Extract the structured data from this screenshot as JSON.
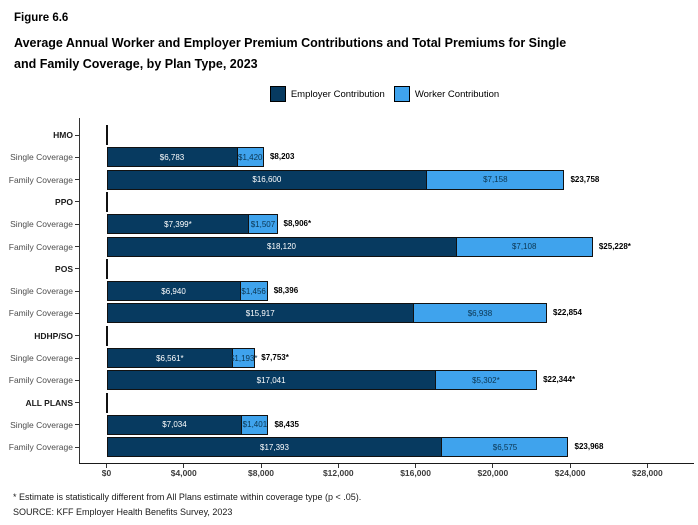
{
  "figure_label": "Figure 6.6",
  "title_lines": [
    "Average Annual Worker and Employer Premium Contributions and Total Premiums for Single",
    "and Family Coverage, by Plan Type, 2023"
  ],
  "legend": {
    "items": [
      {
        "name": "employer",
        "label": "Employer Contribution",
        "color": "#073A60"
      },
      {
        "name": "worker",
        "label": "Worker Contribution",
        "color": "#3FA3ED"
      }
    ]
  },
  "chart_data": {
    "type": "bar",
    "orientation": "horizontal",
    "stacked": true,
    "title": "Average Annual Worker and Employer Premium Contributions and Total Premiums for Single and Family Coverage, by Plan Type, 2023",
    "xlabel": "",
    "ylabel": "",
    "xlim": [
      0,
      28000
    ],
    "grid": false,
    "legend_position": "top-center",
    "series_names": [
      "Employer Contribution",
      "Worker Contribution"
    ],
    "x_ticks": [
      {
        "value": 0,
        "label": "$0"
      },
      {
        "value": 4000,
        "label": "$4,000"
      },
      {
        "value": 8000,
        "label": "$8,000"
      },
      {
        "value": 12000,
        "label": "$12,000"
      },
      {
        "value": 16000,
        "label": "$16,000"
      },
      {
        "value": 20000,
        "label": "$20,000"
      },
      {
        "value": 24000,
        "label": "$24,000"
      },
      {
        "value": 28000,
        "label": "$28,000"
      }
    ],
    "groups": [
      {
        "plan": "HMO",
        "rows": [
          {
            "label": "Single Coverage",
            "employer": 6783,
            "worker": 1420,
            "total": 8203,
            "employer_label": "$6,783",
            "worker_label": "$1,420",
            "total_label": "$8,203"
          },
          {
            "label": "Family Coverage",
            "employer": 16600,
            "worker": 7158,
            "total": 23758,
            "employer_label": "$16,600",
            "worker_label": "$7,158",
            "total_label": "$23,758"
          }
        ]
      },
      {
        "plan": "PPO",
        "rows": [
          {
            "label": "Single Coverage",
            "employer": 7399,
            "worker": 1507,
            "total": 8906,
            "employer_label": "$7,399*",
            "worker_label": "$1,507",
            "total_label": "$8,906*"
          },
          {
            "label": "Family Coverage",
            "employer": 18120,
            "worker": 7108,
            "total": 25228,
            "employer_label": "$18,120",
            "worker_label": "$7,108",
            "total_label": "$25,228*"
          }
        ]
      },
      {
        "plan": "POS",
        "rows": [
          {
            "label": "Single Coverage",
            "employer": 6940,
            "worker": 1456,
            "total": 8396,
            "employer_label": "$6,940",
            "worker_label": "$1,456",
            "total_label": "$8,396"
          },
          {
            "label": "Family Coverage",
            "employer": 15917,
            "worker": 6938,
            "total": 22854,
            "employer_label": "$15,917",
            "worker_label": "$6,938",
            "total_label": "$22,854"
          }
        ]
      },
      {
        "plan": "HDHP/SO",
        "rows": [
          {
            "label": "Single Coverage",
            "employer": 6561,
            "worker": 1193,
            "total": 7753,
            "employer_label": "$6,561*",
            "worker_label": "$1,193*",
            "total_label": "$7,753*"
          },
          {
            "label": "Family Coverage",
            "employer": 17041,
            "worker": 5302,
            "total": 22344,
            "employer_label": "$17,041",
            "worker_label": "$5,302*",
            "total_label": "$22,344*"
          }
        ]
      },
      {
        "plan": "ALL PLANS",
        "rows": [
          {
            "label": "Single Coverage",
            "employer": 7034,
            "worker": 1401,
            "total": 8435,
            "employer_label": "$7,034",
            "worker_label": "$1,401",
            "total_label": "$8,435"
          },
          {
            "label": "Family Coverage",
            "employer": 17393,
            "worker": 6575,
            "total": 23968,
            "employer_label": "$17,393",
            "worker_label": "$6,575",
            "total_label": "$23,968"
          }
        ]
      }
    ]
  },
  "footnotes": [
    "* Estimate is statistically different from All Plans estimate within coverage type (p < .05).",
    "SOURCE: KFF Employer Health Benefits Survey, 2023"
  ],
  "colors": {
    "employer": "#073A60",
    "worker": "#3FA3ED",
    "bar_border": "#111111",
    "x_axis_line": "#1a1a1a",
    "y_axis_line": "#333333",
    "axis_text": "#3d3d3d",
    "label_on_dark": "#FFFFFF",
    "label_on_light": "#0B3550"
  }
}
